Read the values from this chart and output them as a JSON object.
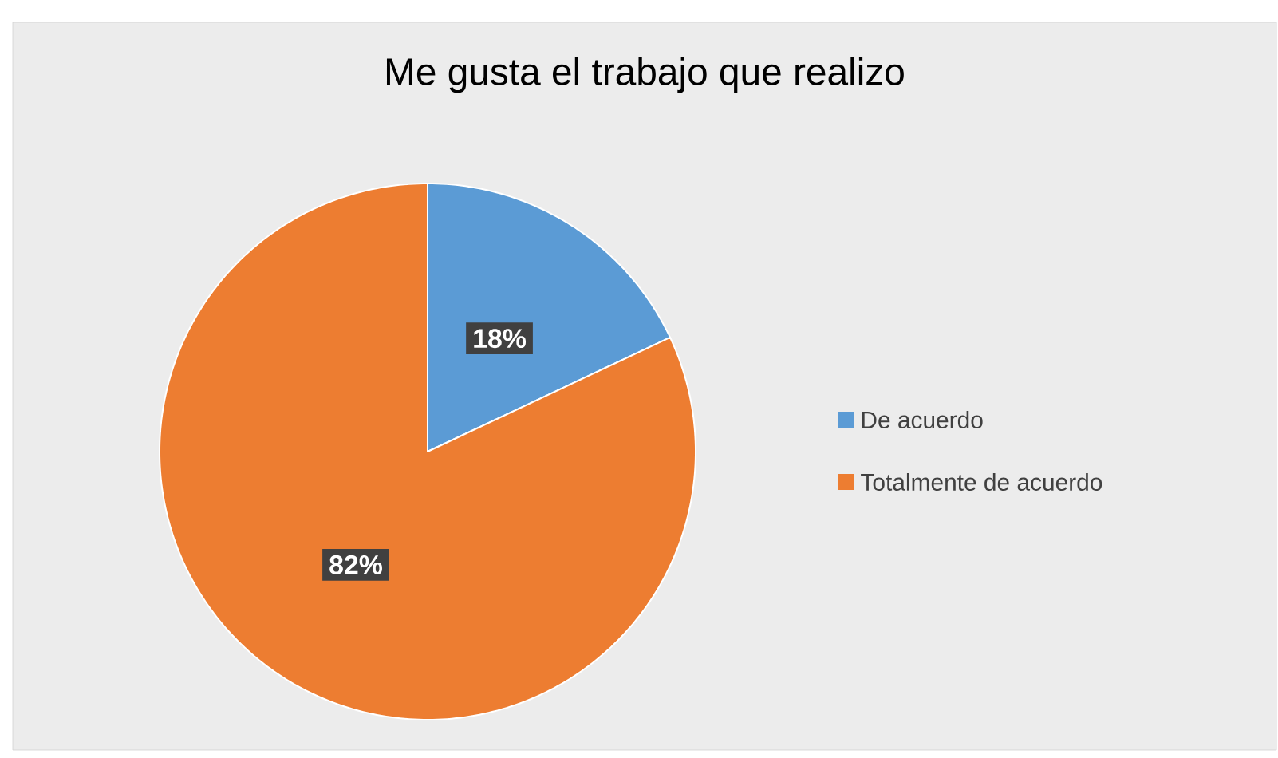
{
  "chart_data": {
    "type": "pie",
    "title": "Me gusta el trabajo que realizo",
    "categories": [
      "De acuerdo",
      "Totalmente de acuerdo"
    ],
    "values": [
      18,
      82
    ],
    "colors": [
      "#5b9bd5",
      "#ed7d31"
    ],
    "value_labels": [
      "18%",
      "82%"
    ],
    "legend": "right"
  }
}
